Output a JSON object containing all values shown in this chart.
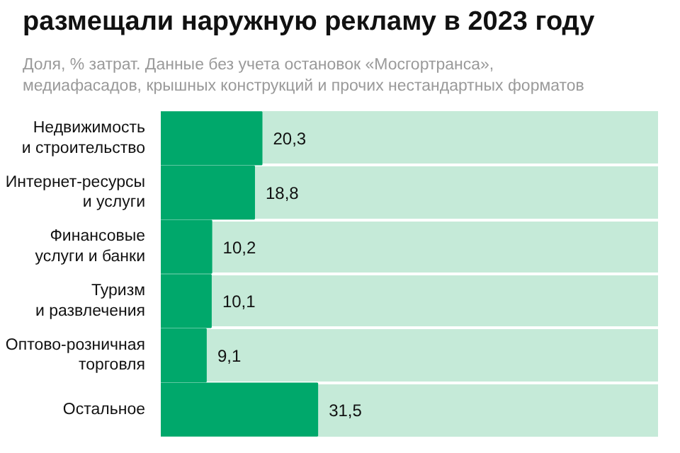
{
  "chart_data": {
    "type": "bar",
    "orientation": "horizontal",
    "title": "размещали наружную рекламу в 2023 году",
    "subtitle": "Доля, % затрат. Данные без учета остановок «Мосгортранса»,\nмедиафасадов, крышных конструкций и прочих нестандартных форматов",
    "categories": [
      "Недвижимость\nи строительство",
      "Интернет-ресурсы\nи услуги",
      "Финансовые\nуслуги и банки",
      "Туризм\nи развлечения",
      "Оптово-розничная\nторговля",
      "Остальное"
    ],
    "values": [
      20.3,
      18.8,
      10.2,
      10.1,
      9.1,
      31.5
    ],
    "value_labels": [
      "20,3",
      "18,8",
      "10,2",
      "10,1",
      "9,1",
      "31,5"
    ],
    "color": "#00a86b",
    "xlim": [
      0,
      100
    ],
    "tick_labels": "y"
  }
}
